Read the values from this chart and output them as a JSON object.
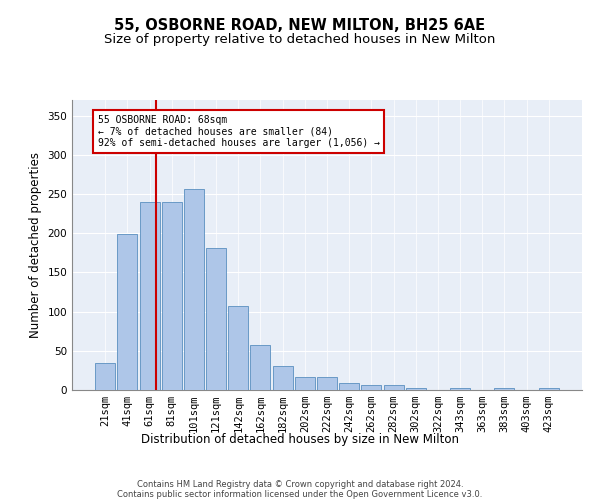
{
  "title1": "55, OSBORNE ROAD, NEW MILTON, BH25 6AE",
  "title2": "Size of property relative to detached houses in New Milton",
  "xlabel": "Distribution of detached houses by size in New Milton",
  "ylabel": "Number of detached properties",
  "categories": [
    "21sqm",
    "41sqm",
    "61sqm",
    "81sqm",
    "101sqm",
    "121sqm",
    "142sqm",
    "162sqm",
    "182sqm",
    "202sqm",
    "222sqm",
    "242sqm",
    "262sqm",
    "282sqm",
    "302sqm",
    "322sqm",
    "343sqm",
    "363sqm",
    "383sqm",
    "403sqm",
    "423sqm"
  ],
  "values": [
    35,
    199,
    240,
    240,
    256,
    181,
    107,
    58,
    30,
    17,
    17,
    9,
    6,
    6,
    3,
    0,
    3,
    0,
    2,
    0,
    2
  ],
  "bar_color": "#aec6e8",
  "bar_edge_color": "#5a8fc0",
  "ylim": [
    0,
    370
  ],
  "yticks": [
    0,
    50,
    100,
    150,
    200,
    250,
    300,
    350
  ],
  "vline_x": 2.3,
  "vline_color": "#cc0000",
  "annotation_title": "55 OSBORNE ROAD: 68sqm",
  "annotation_line1": "← 7% of detached houses are smaller (84)",
  "annotation_line2": "92% of semi-detached houses are larger (1,056) →",
  "annotation_box_color": "#cc0000",
  "bg_color": "#e8eef7",
  "footnote": "Contains HM Land Registry data © Crown copyright and database right 2024.\nContains public sector information licensed under the Open Government Licence v3.0.",
  "title1_fontsize": 10.5,
  "title2_fontsize": 9.5,
  "xlabel_fontsize": 8.5,
  "ylabel_fontsize": 8.5,
  "tick_fontsize": 7.5,
  "annot_fontsize": 7.0,
  "footnote_fontsize": 6.0
}
